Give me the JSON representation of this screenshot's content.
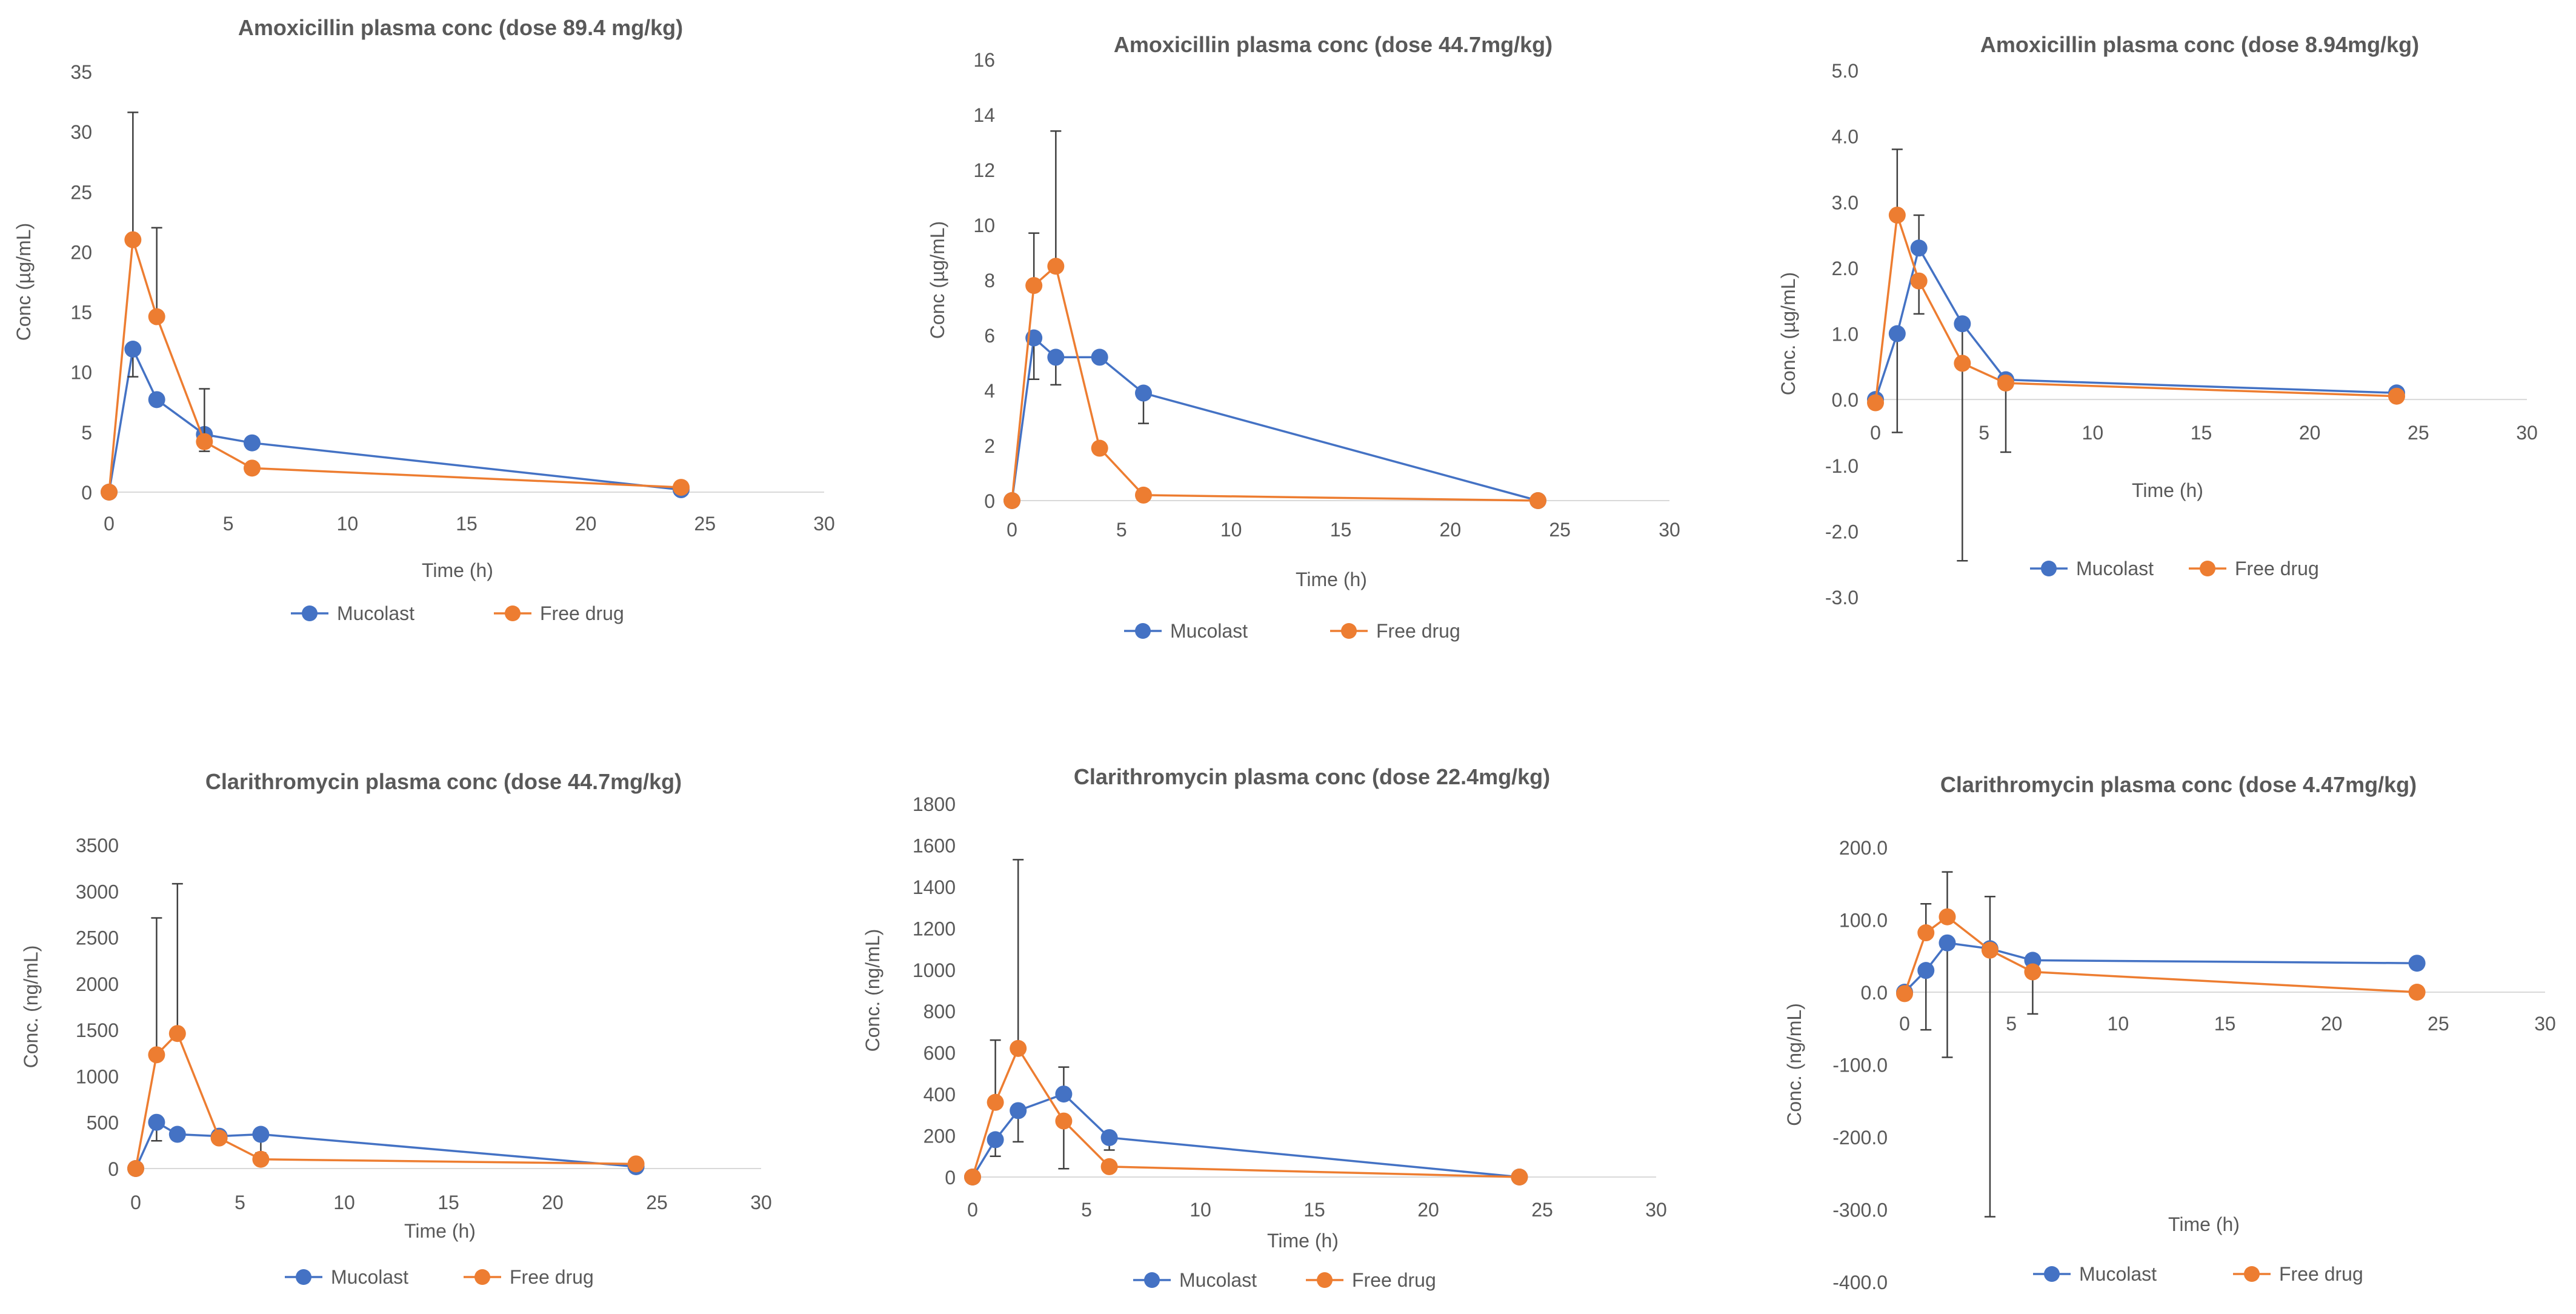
{
  "chart_data": [
    {
      "type": "scatter",
      "title": "Amoxicillin plasma conc (dose 89.4 mg/kg)",
      "xlabel": "Time (h)",
      "ylabel": "Conc (µg/mL)",
      "xlim": [
        0,
        30
      ],
      "ylim": [
        0,
        35
      ],
      "xticks": [
        "0",
        "5",
        "10",
        "15",
        "20",
        "25",
        "30"
      ],
      "yticks": [
        "0",
        "5",
        "10",
        "15",
        "20",
        "25",
        "30",
        "35"
      ],
      "x": [
        0,
        1,
        2,
        4,
        6,
        24
      ],
      "series": [
        {
          "name": "Mucolast",
          "color": "#4472c4",
          "values": [
            0,
            11.9,
            7.7,
            4.8,
            4.1,
            0.2
          ],
          "err_plus": [
            0,
            0,
            0,
            0,
            0,
            0
          ],
          "err_minus": [
            0,
            2.3,
            0,
            1.4,
            0,
            0
          ]
        },
        {
          "name": "Free drug",
          "color": "#ed7d31",
          "values": [
            0,
            21.0,
            14.6,
            4.2,
            2.0,
            0.4
          ],
          "err_plus": [
            0,
            10.6,
            7.4,
            4.4,
            0,
            0
          ],
          "err_minus": [
            0,
            0,
            0,
            0,
            0,
            0
          ]
        }
      ]
    },
    {
      "type": "scatter",
      "title": "Amoxicillin plasma conc (dose 44.7mg/kg)",
      "xlabel": "Time (h)",
      "ylabel": "Conc (µg/mL)",
      "xlim": [
        0,
        30
      ],
      "ylim": [
        0,
        16
      ],
      "xticks": [
        "0",
        "5",
        "10",
        "15",
        "20",
        "25",
        "30"
      ],
      "yticks": [
        "0",
        "2",
        "4",
        "6",
        "8",
        "10",
        "12",
        "14",
        "16"
      ],
      "x": [
        0,
        1,
        2,
        4,
        6,
        24
      ],
      "series": [
        {
          "name": "Mucolast",
          "color": "#4472c4",
          "values": [
            0,
            5.9,
            5.2,
            5.2,
            3.9,
            0
          ],
          "err_plus": [
            0,
            0,
            0,
            0,
            0,
            0
          ],
          "err_minus": [
            0,
            1.5,
            1.0,
            0,
            1.1,
            0
          ]
        },
        {
          "name": "Free drug",
          "color": "#ed7d31",
          "values": [
            0,
            7.8,
            8.5,
            1.9,
            0.2,
            0
          ],
          "err_plus": [
            0,
            1.9,
            4.9,
            0,
            0,
            0
          ],
          "err_minus": [
            0,
            0,
            0,
            0,
            0,
            0
          ]
        }
      ]
    },
    {
      "type": "scatter",
      "title": "Amoxicillin plasma conc (dose 8.94mg/kg)",
      "xlabel": "Time (h)",
      "ylabel": "Conc. (µg/mL)",
      "xlim": [
        0,
        30
      ],
      "ylim": [
        -3,
        5
      ],
      "xticks": [
        "0",
        "5",
        "10",
        "15",
        "20",
        "25",
        "30"
      ],
      "yticks": [
        "-3.0",
        "-2.0",
        "-1.0",
        "0.0",
        "1.0",
        "2.0",
        "3.0",
        "4.0",
        "5.0"
      ],
      "x": [
        0,
        1,
        2,
        4,
        6,
        24
      ],
      "series": [
        {
          "name": "Mucolast",
          "color": "#4472c4",
          "values": [
            0,
            1.0,
            2.3,
            1.15,
            0.3,
            0.1
          ],
          "err_plus": [
            0,
            0,
            0.5,
            0,
            0,
            0
          ],
          "err_minus": [
            0,
            1.5,
            0,
            3.6,
            1.1,
            0
          ]
        },
        {
          "name": "Free drug",
          "color": "#ed7d31",
          "values": [
            -0.05,
            2.8,
            1.8,
            0.55,
            0.25,
            0.05
          ],
          "err_plus": [
            0,
            1.0,
            0,
            0,
            0,
            0
          ],
          "err_minus": [
            0,
            0,
            0.5,
            0,
            0,
            0
          ]
        }
      ]
    },
    {
      "type": "scatter",
      "title": "Clarithromycin plasma conc (dose 44.7mg/kg)",
      "xlabel": "Time (h)",
      "ylabel": "Conc. (ng/mL)",
      "xlim": [
        0,
        30
      ],
      "ylim": [
        0,
        3500
      ],
      "xticks": [
        "0",
        "5",
        "10",
        "15",
        "20",
        "25",
        "30"
      ],
      "yticks": [
        "0",
        "500",
        "1000",
        "1500",
        "2000",
        "2500",
        "3000",
        "3500"
      ],
      "x": [
        0,
        1,
        2,
        4,
        6,
        24
      ],
      "series": [
        {
          "name": "Mucolast",
          "color": "#4472c4",
          "values": [
            0,
            500,
            370,
            350,
            370,
            20
          ],
          "err_plus": [
            0,
            0,
            0,
            0,
            0,
            0
          ],
          "err_minus": [
            0,
            200,
            0,
            0,
            200,
            0
          ]
        },
        {
          "name": "Free drug",
          "color": "#ed7d31",
          "values": [
            0,
            1230,
            1460,
            330,
            100,
            50
          ],
          "err_plus": [
            0,
            1480,
            1620,
            0,
            0,
            0
          ],
          "err_minus": [
            0,
            0,
            0,
            0,
            0,
            0
          ]
        }
      ]
    },
    {
      "type": "scatter",
      "title": "Clarithromycin plasma conc (dose 22.4mg/kg)",
      "xlabel": "Time (h)",
      "ylabel": "Conc.  (ng/mL)",
      "xlim": [
        0,
        30
      ],
      "ylim": [
        0,
        1800
      ],
      "xticks": [
        "0",
        "5",
        "10",
        "15",
        "20",
        "25",
        "30"
      ],
      "yticks": [
        "0",
        "200",
        "400",
        "600",
        "800",
        "1000",
        "1200",
        "1400",
        "1600",
        "1800"
      ],
      "x": [
        0,
        1,
        2,
        4,
        6,
        24
      ],
      "series": [
        {
          "name": "Mucolast",
          "color": "#4472c4",
          "values": [
            0,
            180,
            320,
            400,
            190,
            0
          ],
          "err_plus": [
            0,
            0,
            0,
            130,
            0,
            0
          ],
          "err_minus": [
            0,
            80,
            150,
            0,
            60,
            0
          ]
        },
        {
          "name": "Free drug",
          "color": "#ed7d31",
          "values": [
            0,
            360,
            620,
            270,
            50,
            0
          ],
          "err_plus": [
            0,
            300,
            910,
            0,
            0,
            0
          ],
          "err_minus": [
            0,
            0,
            0,
            230,
            0,
            0
          ]
        }
      ]
    },
    {
      "type": "scatter",
      "title": "Clarithromycin plasma conc (dose 4.47mg/kg)",
      "xlabel": "Time (h)",
      "ylabel": "Conc. (ng/mL)",
      "xlim": [
        0,
        30
      ],
      "ylim": [
        -400,
        200
      ],
      "xticks": [
        "0",
        "5",
        "10",
        "15",
        "20",
        "25",
        "30"
      ],
      "yticks": [
        "-400.0",
        "-300.0",
        "-200.0",
        "-100.0",
        "0.0",
        "100.0",
        "200.0"
      ],
      "x": [
        0,
        1,
        2,
        4,
        6,
        24
      ],
      "series": [
        {
          "name": "Mucolast",
          "color": "#4472c4",
          "values": [
            0,
            30,
            68,
            60,
            44,
            40
          ],
          "err_plus": [
            0,
            0,
            0,
            72,
            0,
            0
          ],
          "err_minus": [
            0,
            82,
            158,
            370,
            0,
            0
          ]
        },
        {
          "name": "Free drug",
          "color": "#ed7d31",
          "values": [
            -2,
            82,
            104,
            58,
            28,
            0
          ],
          "err_plus": [
            0,
            40,
            62,
            0,
            0,
            0
          ],
          "err_minus": [
            0,
            0,
            0,
            0,
            58,
            0
          ]
        }
      ]
    }
  ]
}
